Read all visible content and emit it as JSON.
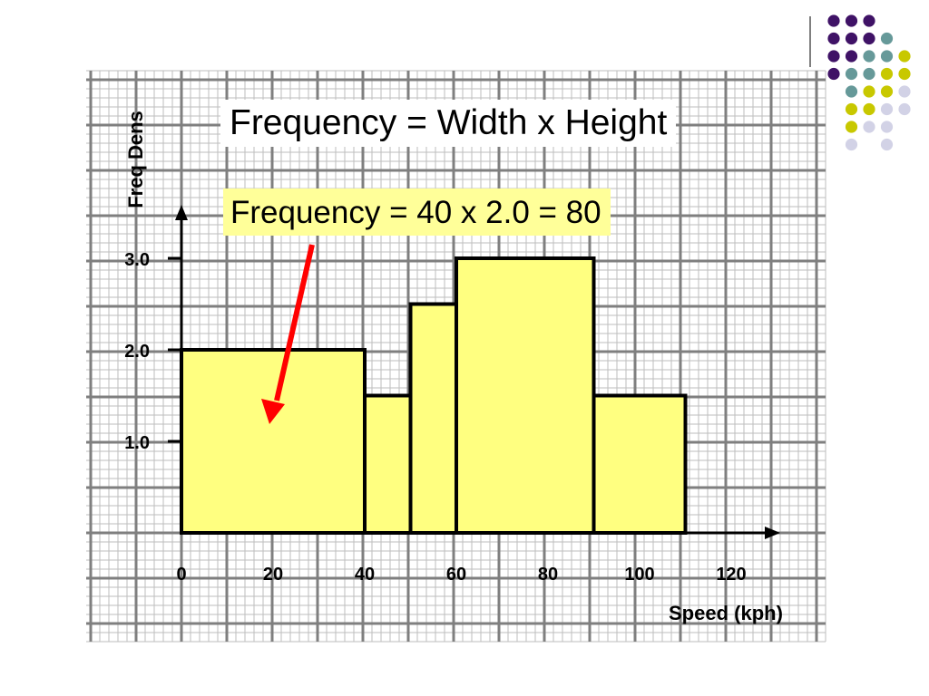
{
  "chart_data": {
    "type": "bar",
    "histogram": true,
    "bins": [
      {
        "x_start": 0,
        "x_end": 40,
        "value": 2.0
      },
      {
        "x_start": 40,
        "x_end": 50,
        "value": 1.5
      },
      {
        "x_start": 50,
        "x_end": 60,
        "value": 2.5
      },
      {
        "x_start": 60,
        "x_end": 90,
        "value": 3.0
      },
      {
        "x_start": 90,
        "x_end": 110,
        "value": 1.5
      }
    ],
    "xlabel": "Speed (kph)",
    "ylabel": "Freq Dens",
    "xlim": [
      0,
      130
    ],
    "ylim": [
      0,
      3.5
    ],
    "x_ticks": [
      0,
      20,
      40,
      60,
      80,
      100,
      120
    ],
    "x_tick_labels": [
      "0",
      "20",
      "40",
      "60",
      "80",
      "100",
      "120"
    ],
    "y_ticks": [
      1.0,
      2.0,
      3.0
    ],
    "y_tick_labels": [
      "1.0",
      "2.0",
      "3.0"
    ],
    "grid": true,
    "bar_color": "#ffff80",
    "annotations": [
      {
        "text": "Frequency = Width x Height",
        "background": "#ffffff"
      },
      {
        "text": "Frequency = 40 x 2.0 = 80",
        "background": "#ffff99",
        "arrow_color": "#ff0000",
        "points_to_bin": 0
      }
    ]
  },
  "colors": {
    "grid_major": "#7f7f7f",
    "grid_minor": "#bdbdbd",
    "graph_paper_bg": "#ffffff",
    "arrow": "#ff0000",
    "decor_purple": "#3f1266",
    "decor_teal": "#669999",
    "decor_olive": "#c8c800",
    "decor_lavender": "#d2d2e6"
  },
  "decoration": {
    "dot_grid": [
      [
        0,
        0,
        "decor_purple"
      ],
      [
        1,
        0,
        "decor_purple"
      ],
      [
        2,
        0,
        "decor_purple"
      ],
      [
        0,
        1,
        "decor_purple"
      ],
      [
        1,
        1,
        "decor_purple"
      ],
      [
        2,
        1,
        "decor_purple"
      ],
      [
        3,
        1,
        "decor_teal"
      ],
      [
        0,
        2,
        "decor_purple"
      ],
      [
        1,
        2,
        "decor_purple"
      ],
      [
        2,
        2,
        "decor_teal"
      ],
      [
        3,
        2,
        "decor_teal"
      ],
      [
        4,
        2,
        "decor_olive"
      ],
      [
        0,
        3,
        "decor_purple"
      ],
      [
        1,
        3,
        "decor_teal"
      ],
      [
        2,
        3,
        "decor_teal"
      ],
      [
        3,
        3,
        "decor_olive"
      ],
      [
        4,
        3,
        "decor_olive"
      ],
      [
        1,
        4,
        "decor_teal"
      ],
      [
        2,
        4,
        "decor_olive"
      ],
      [
        3,
        4,
        "decor_olive"
      ],
      [
        4,
        4,
        "decor_lavender"
      ],
      [
        1,
        5,
        "decor_olive"
      ],
      [
        2,
        5,
        "decor_olive"
      ],
      [
        3,
        5,
        "decor_lavender"
      ],
      [
        4,
        5,
        "decor_lavender"
      ],
      [
        1,
        6,
        "decor_olive"
      ],
      [
        2,
        6,
        "decor_lavender"
      ],
      [
        3,
        6,
        "decor_lavender"
      ],
      [
        1,
        7,
        "decor_lavender"
      ],
      [
        3,
        7,
        "decor_lavender"
      ]
    ]
  }
}
